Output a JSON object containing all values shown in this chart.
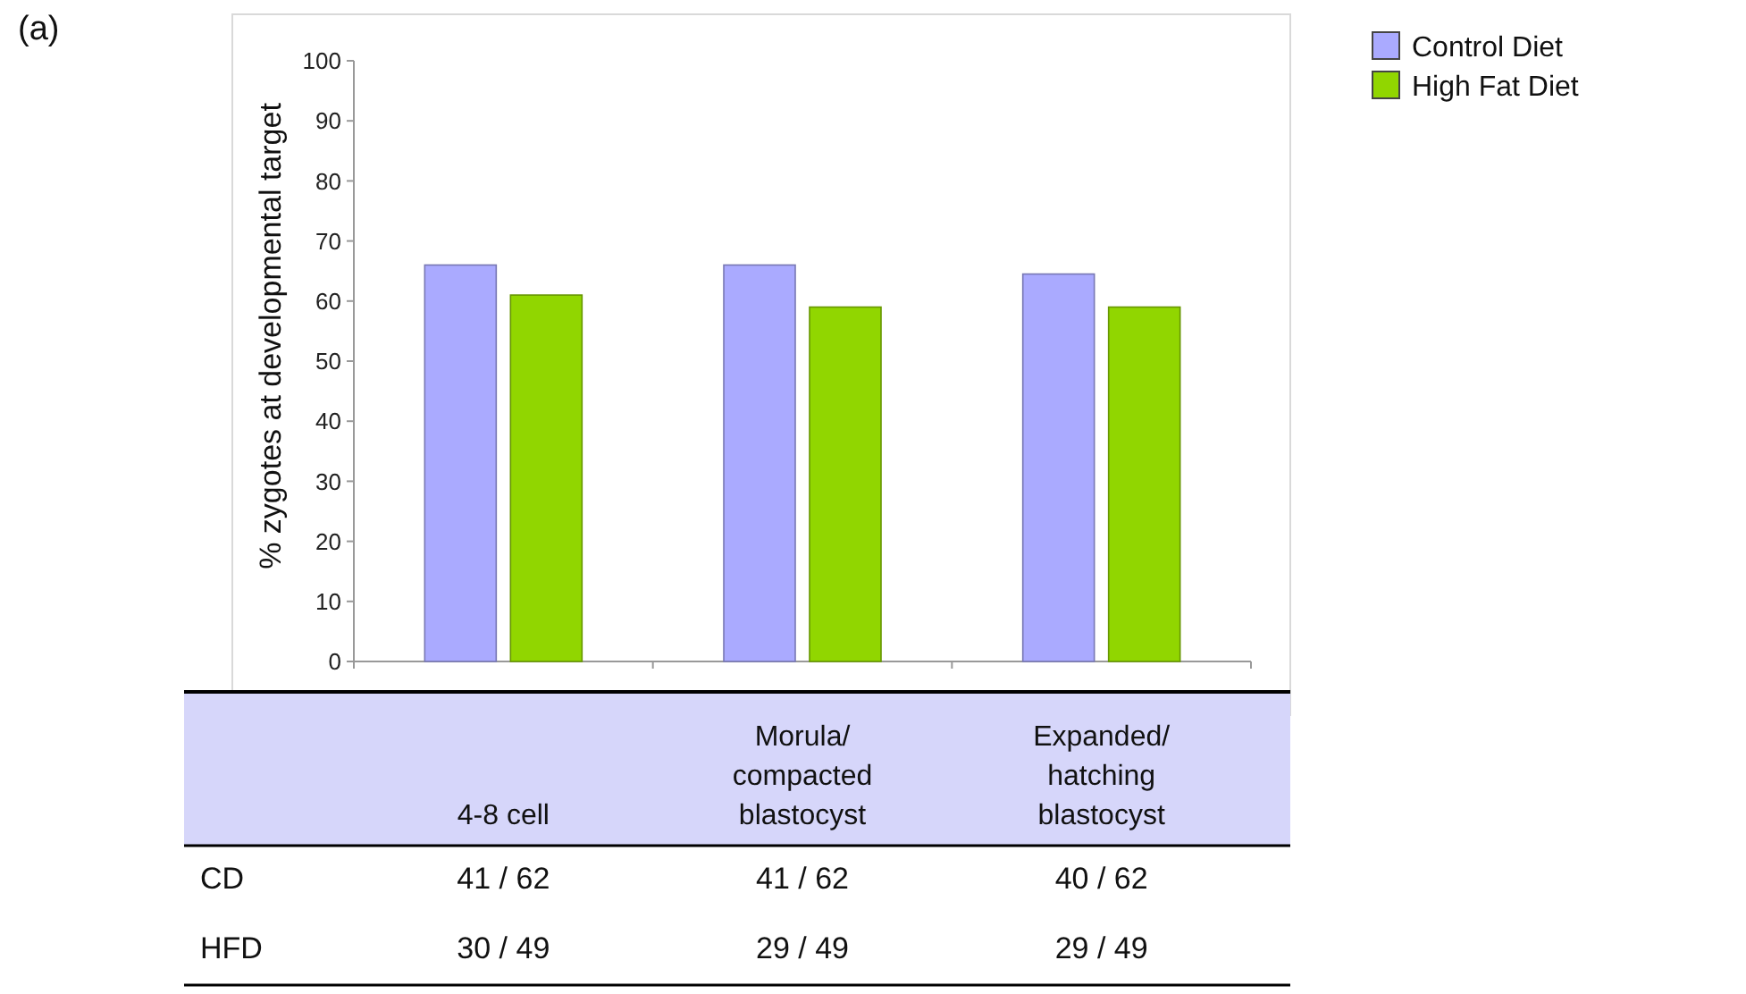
{
  "chart_data": {
    "type": "bar",
    "ylabel": "% zygotes at developmental target",
    "categories": [
      "4-8 cell",
      "Morula/\ncompacted\nblastocyst",
      "Expanded/\nhatching\nblastocyst"
    ],
    "series": [
      {
        "name": "Control Diet",
        "color": "#aaaaff",
        "values": [
          66,
          66,
          64.5
        ]
      },
      {
        "name": "High Fat Diet",
        "color": "#91d600",
        "values": [
          61,
          59,
          59
        ]
      }
    ],
    "ylim": [
      0,
      100
    ],
    "yticks": [
      0,
      10,
      20,
      30,
      40,
      50,
      60,
      70,
      80,
      90,
      100
    ],
    "grid": false,
    "legend": "top right",
    "annotations": [
      "(a)",
      "CD",
      "41 / 62",
      "41 / 62",
      "40 / 62",
      "HFD",
      "30 / 49",
      "29 / 49",
      "29 / 49"
    ]
  }
}
